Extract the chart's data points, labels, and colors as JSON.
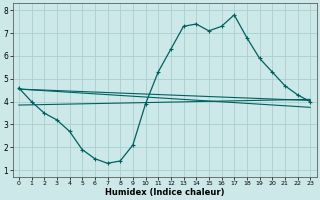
{
  "xlabel": "Humidex (Indice chaleur)",
  "bg_color": "#cce8e8",
  "line_color": "#006060",
  "xlim": [
    -0.5,
    23.5
  ],
  "ylim": [
    0.7,
    8.3
  ],
  "yticks": [
    1,
    2,
    3,
    4,
    5,
    6,
    7,
    8
  ],
  "xticks": [
    0,
    1,
    2,
    3,
    4,
    5,
    6,
    7,
    8,
    9,
    10,
    11,
    12,
    13,
    14,
    15,
    16,
    17,
    18,
    19,
    20,
    21,
    22,
    23
  ],
  "line1_x": [
    0,
    1,
    2,
    3,
    4,
    5,
    6,
    7,
    8,
    9,
    10,
    11,
    12,
    13,
    14,
    15,
    16,
    17,
    18,
    19,
    20,
    21,
    22,
    23
  ],
  "line1_y": [
    4.6,
    4.0,
    3.5,
    3.2,
    2.7,
    1.9,
    1.5,
    1.3,
    1.4,
    2.1,
    3.9,
    5.3,
    6.3,
    7.3,
    7.4,
    7.1,
    7.3,
    7.8,
    6.8,
    5.9,
    5.3,
    4.7,
    4.3,
    4.0
  ],
  "line2_x": [
    0,
    23
  ],
  "line2_y": [
    4.55,
    4.05
  ],
  "line3_x": [
    0,
    23
  ],
  "line3_y": [
    4.55,
    3.75
  ],
  "line4_x": [
    0,
    23
  ],
  "line4_y": [
    3.85,
    4.1
  ],
  "grid_color": "#aacfcf",
  "marker": "+"
}
